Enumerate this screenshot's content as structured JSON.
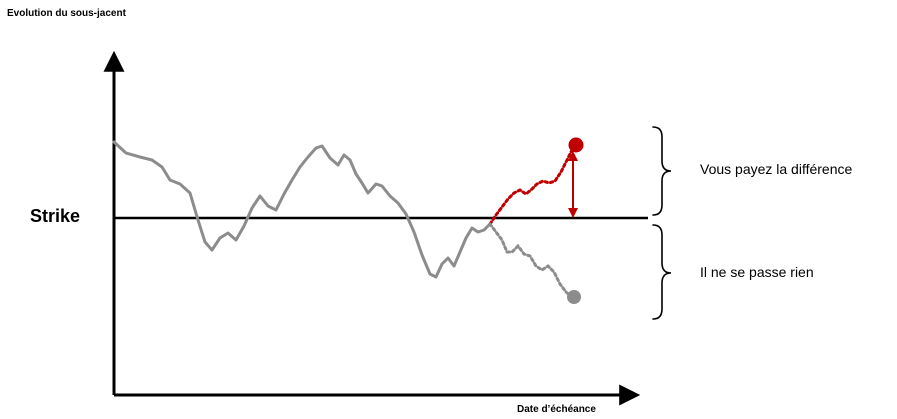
{
  "diagram": {
    "y_axis_label": "Evolution du sous-jacent",
    "x_axis_label": "Date d’échéance",
    "strike_label": "Strike",
    "upper_annotation": "Vous payez la différence",
    "lower_annotation": "Il ne se passe rien"
  },
  "colors": {
    "historical_path": "#8c8c8c",
    "up_scenario": "#c00000",
    "down_scenario": "#8c8c8c",
    "difference_arrow": "#c00000",
    "axes": "#000000",
    "strike_line": "#000000"
  }
}
